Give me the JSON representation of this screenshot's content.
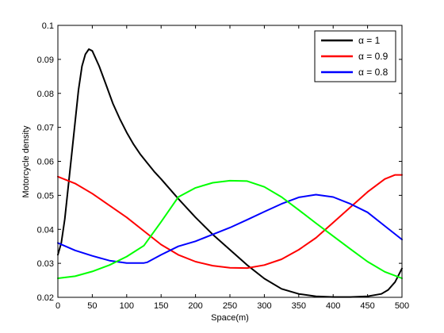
{
  "chart_data": {
    "type": "line",
    "title": "",
    "xlabel": "Space(m)",
    "ylabel": "Motorcycle density",
    "xlim": [
      0,
      500
    ],
    "ylim": [
      0.02,
      0.1
    ],
    "xticks": [
      0,
      50,
      100,
      150,
      200,
      250,
      300,
      350,
      400,
      450,
      500
    ],
    "yticks": [
      0.02,
      0.03,
      0.04,
      0.05,
      0.06,
      0.07,
      0.08,
      0.09,
      0.1
    ],
    "xtick_labels": [
      "0",
      "50",
      "100",
      "150",
      "200",
      "250",
      "300",
      "350",
      "400",
      "450",
      "500"
    ],
    "ytick_labels": [
      "0.02",
      "0.03",
      "0.04",
      "0.05",
      "0.06",
      "0.07",
      "0.08",
      "0.09",
      "0.1"
    ],
    "grid": false,
    "legend_position": "top-right",
    "series": [
      {
        "name": "α = 1",
        "color": "#000000",
        "x": [
          0,
          5,
          10,
          20,
          30,
          35,
          40,
          45,
          50,
          60,
          70,
          80,
          90,
          100,
          110,
          120,
          130,
          140,
          150,
          175,
          200,
          225,
          250,
          275,
          300,
          325,
          350,
          375,
          400,
          425,
          450,
          470,
          480,
          490,
          495,
          500
        ],
        "y": [
          0.0325,
          0.036,
          0.043,
          0.062,
          0.081,
          0.088,
          0.0915,
          0.093,
          0.0925,
          0.088,
          0.0825,
          0.077,
          0.0725,
          0.0685,
          0.065,
          0.062,
          0.0595,
          0.057,
          0.0548,
          0.049,
          0.0435,
          0.0385,
          0.034,
          0.0295,
          0.0255,
          0.0225,
          0.021,
          0.0203,
          0.0201,
          0.0201,
          0.0203,
          0.021,
          0.0222,
          0.0245,
          0.0265,
          0.0285
        ]
      },
      {
        "name": "α = 0.9",
        "color": "#ff0000",
        "x": [
          0,
          25,
          50,
          75,
          100,
          125,
          150,
          175,
          200,
          225,
          250,
          275,
          300,
          325,
          350,
          375,
          400,
          425,
          450,
          475,
          490,
          500
        ],
        "y": [
          0.0555,
          0.0535,
          0.0505,
          0.047,
          0.0435,
          0.0395,
          0.0355,
          0.0325,
          0.0305,
          0.0293,
          0.0287,
          0.0286,
          0.0295,
          0.0312,
          0.034,
          0.0375,
          0.042,
          0.0465,
          0.051,
          0.0548,
          0.056,
          0.056
        ]
      },
      {
        "name": "α = 0.8",
        "color": "#0000ff",
        "x": [
          0,
          25,
          50,
          75,
          100,
          125,
          130,
          150,
          175,
          200,
          225,
          250,
          275,
          300,
          325,
          350,
          375,
          400,
          425,
          450,
          475,
          500
        ],
        "y": [
          0.036,
          0.0338,
          0.0322,
          0.0308,
          0.0301,
          0.0301,
          0.0303,
          0.0325,
          0.035,
          0.0365,
          0.0385,
          0.0405,
          0.0428,
          0.0452,
          0.0475,
          0.0494,
          0.0502,
          0.0495,
          0.0475,
          0.045,
          0.041,
          0.037
        ]
      },
      {
        "name": "",
        "color": "#00ff00",
        "x": [
          0,
          25,
          50,
          75,
          100,
          125,
          150,
          175,
          200,
          225,
          250,
          275,
          300,
          325,
          350,
          375,
          400,
          425,
          450,
          475,
          500
        ],
        "y": [
          0.0256,
          0.0262,
          0.0276,
          0.0295,
          0.032,
          0.0352,
          0.0422,
          0.0495,
          0.0522,
          0.0537,
          0.0543,
          0.0542,
          0.0525,
          0.0495,
          0.0457,
          0.0418,
          0.038,
          0.0342,
          0.0305,
          0.0275,
          0.0256
        ]
      }
    ]
  }
}
